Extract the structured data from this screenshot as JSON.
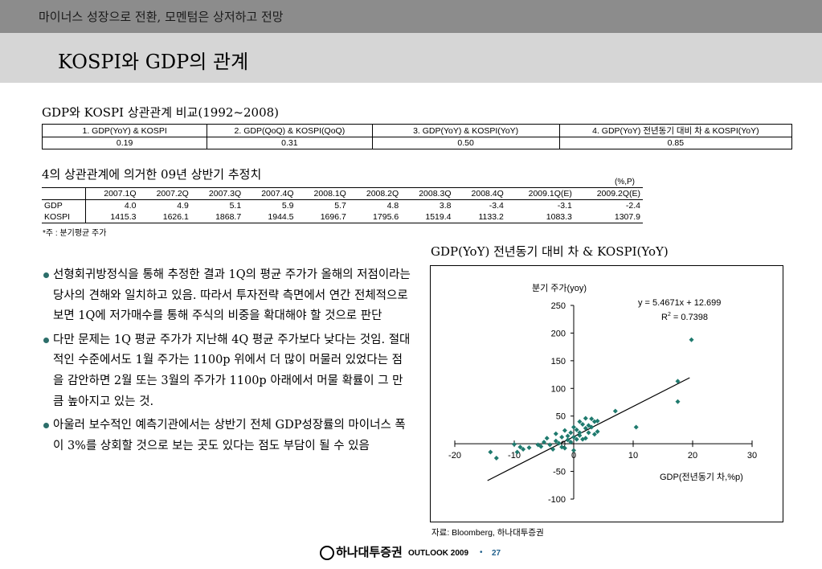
{
  "header": {
    "top_text": "마이너스 성장으로 전환, 모멘텀은 상저하고 전망",
    "title": "KOSPI와 GDP의 관계"
  },
  "table1": {
    "caption": "GDP와 KOSPI 상관관계 비교(1992~2008)",
    "headers": [
      "1. GDP(YoY) & KOSPI",
      "2. GDP(QoQ) & KOSPI(QoQ)",
      "3. GDP(YoY) & KOSPI(YoY)",
      "4. GDP(YoY) 전년동기 대비 차 & KOSPI(YoY)"
    ],
    "values": [
      "0.19",
      "0.31",
      "0.50",
      "0.85"
    ]
  },
  "table2": {
    "caption": "4의 상관관계에 의거한 09년 상반기 추정치",
    "unit": "(%,P)",
    "headers": [
      "",
      "2007.1Q",
      "2007.2Q",
      "2007.3Q",
      "2007.4Q",
      "2008.1Q",
      "2008.2Q",
      "2008.3Q",
      "2008.4Q",
      "2009.1Q(E)",
      "2009.2Q(E)"
    ],
    "rows": [
      [
        "GDP",
        "4.0",
        "4.9",
        "5.1",
        "5.9",
        "5.7",
        "4.8",
        "3.8",
        "-3.4",
        "-3.1",
        "-2.4"
      ],
      [
        "KOSPI",
        "1415.3",
        "1626.1",
        "1868.7",
        "1944.5",
        "1696.7",
        "1795.6",
        "1519.4",
        "1133.2",
        "1083.3",
        "1307.9"
      ]
    ],
    "note": "*주 : 분기평균 주가"
  },
  "bullets": [
    "선형회귀방정식을 통해 추정한 결과 1Q의 평균 주가가 올해의 저점이라는 당사의 견해와 일치하고 있음. 따라서 투자전략 측면에서 연간 전체적으로 보면 1Q에 저가매수를 통해 주식의 비중을 확대해야 할 것으로 판단",
    "다만 문제는 1Q 평균 주가가 지난해 4Q 평균 주가보다 낮다는 것임. 절대적인 수준에서도 1월 주가는 1100p 위에서 더 많이 머물러 있었다는 점을 감안하면 2월 또는 3월의 주가가 1100p 아래에서 머물 확률이 그 만큼 높아지고 있는 것.",
    "아울러 보수적인 예측기관에서는 상반기 전체 GDP성장률의 마이너스 폭이 3%를 상회할 것으로 보는 곳도 있다는 점도 부담이 될 수 있음"
  ],
  "chart_title": "GDP(YoY) 전년동기 대비 차 & KOSPI(YoY)",
  "chart_data": {
    "type": "scatter",
    "title": "GDP(YoY) 전년동기 대비 차 & KOSPI(YoY)",
    "ylabel": "분기 주가(yoy)",
    "xlabel": "GDP(전년동기 차,%p)",
    "equation": "y = 5.4671x + 12.699",
    "r2_label": "R",
    "r2_sup": "2",
    "r2_value": " = 0.7398",
    "xlim": [
      -20,
      30
    ],
    "ylim": [
      -100,
      250
    ],
    "x_ticks": [
      "-20",
      "-10",
      "0",
      "10",
      "20",
      "30"
    ],
    "y_ticks": [
      "250",
      "200",
      "150",
      "100",
      "50",
      "0",
      "-50",
      "-100"
    ],
    "x_tick_values": [
      -20,
      -10,
      0,
      10,
      20,
      30
    ],
    "y_tick_values": [
      250,
      200,
      150,
      100,
      50,
      0,
      -50,
      -100
    ],
    "regression": {
      "slope": 5.4671,
      "intercept": 12.699,
      "x_range": [
        -14.5,
        19.5
      ]
    },
    "color": "#1f7a6e",
    "points": [
      [
        19.8,
        188
      ],
      [
        17.5,
        113
      ],
      [
        17.5,
        76
      ],
      [
        7,
        59
      ],
      [
        10.5,
        30
      ],
      [
        -14,
        -15
      ],
      [
        -13,
        -26
      ],
      [
        -10,
        -1
      ],
      [
        -9,
        -6
      ],
      [
        -9.5,
        -15
      ],
      [
        -8.5,
        -10
      ],
      [
        -7.5,
        -7
      ],
      [
        -6,
        -2
      ],
      [
        -5.5,
        -5
      ],
      [
        -5,
        3
      ],
      [
        -4.5,
        10
      ],
      [
        -4,
        -2
      ],
      [
        -3.5,
        -10
      ],
      [
        -3,
        5
      ],
      [
        -3,
        18
      ],
      [
        -2.5,
        1
      ],
      [
        -2,
        12
      ],
      [
        -2,
        -6
      ],
      [
        -1.5,
        24
      ],
      [
        -1,
        14
      ],
      [
        -1,
        7
      ],
      [
        -0.5,
        3
      ],
      [
        -0.5,
        20
      ],
      [
        0,
        30
      ],
      [
        0,
        12
      ],
      [
        0.5,
        25
      ],
      [
        0.5,
        8
      ],
      [
        1,
        40
      ],
      [
        1,
        20
      ],
      [
        1.5,
        35
      ],
      [
        1.5,
        8
      ],
      [
        2,
        46
      ],
      [
        2,
        28
      ],
      [
        2.5,
        20
      ],
      [
        3,
        45
      ],
      [
        3,
        30
      ],
      [
        3.5,
        17
      ],
      [
        4,
        41
      ],
      [
        4,
        22
      ],
      [
        3.5,
        40
      ],
      [
        2.5,
        33
      ],
      [
        -1.5,
        -8
      ],
      [
        0,
        -12
      ],
      [
        1,
        15
      ],
      [
        2,
        10
      ]
    ]
  },
  "source": "자료: Bloomberg, 하나대투증권",
  "footer": {
    "logo": "하나대투증권",
    "outlook": "OUTLOOK 2009",
    "sep": "•",
    "page": "27"
  }
}
